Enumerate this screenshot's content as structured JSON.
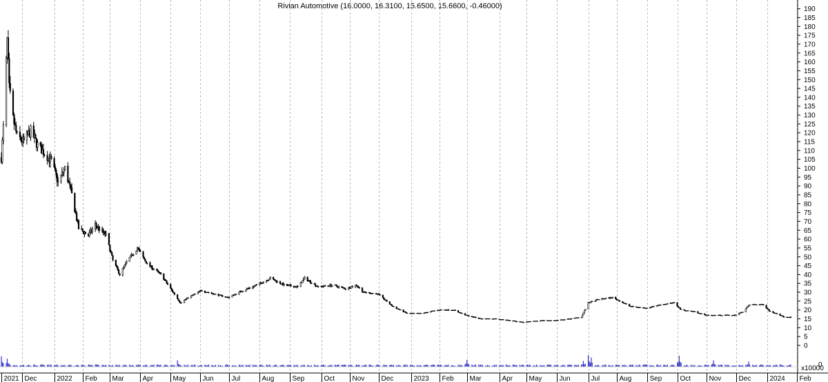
{
  "chart_data": {
    "type": "candlestick",
    "title": "Rivian Automotive (16.0000, 16.3100, 15.6500, 15.6600, -0.46000)",
    "last_bar": {
      "open": 16.0,
      "high": 16.31,
      "low": 15.65,
      "close": 15.66,
      "change": -0.46
    },
    "price_axis": {
      "min": 0,
      "max": 190,
      "step": 5,
      "ticks": [
        0,
        5,
        10,
        15,
        20,
        25,
        30,
        35,
        40,
        45,
        50,
        55,
        60,
        65,
        70,
        75,
        80,
        85,
        90,
        95,
        100,
        105,
        110,
        115,
        120,
        125,
        130,
        135,
        140,
        145,
        150,
        155,
        160,
        165,
        170,
        175,
        180,
        185,
        190
      ]
    },
    "volume_axis": {
      "label": "x10000",
      "tick": "0"
    },
    "x_axis": {
      "months": [
        "2021",
        "Dec",
        "2022",
        "Feb",
        "Mar",
        "Apr",
        "May",
        "Jun",
        "Jul",
        "Aug",
        "Sep",
        "Oct",
        "Nov",
        "Dec",
        "2023",
        "Feb",
        "Mar",
        "Apr",
        "May",
        "Jun",
        "Jul",
        "Aug",
        "Sep",
        "Oct",
        "Nov",
        "Dec",
        "2024",
        "Feb"
      ],
      "dates": [
        "2021-11-10",
        "2021-12-01",
        "2022-01-03",
        "2022-02-01",
        "2022-03-01",
        "2022-04-01",
        "2022-05-02",
        "2022-06-01",
        "2022-07-01",
        "2022-08-01",
        "2022-09-01",
        "2022-10-03",
        "2022-11-01",
        "2022-12-01",
        "2023-01-03",
        "2023-02-01",
        "2023-03-01",
        "2023-04-03",
        "2023-05-01",
        "2023-06-01",
        "2023-07-03",
        "2023-08-01",
        "2023-09-01",
        "2023-10-02",
        "2023-11-01",
        "2023-12-01",
        "2024-01-02",
        "2024-02-01"
      ],
      "start": "2021-11-10",
      "end": "2024-01-26"
    },
    "price_keypoints": [
      [
        "2021-11-10",
        106
      ],
      [
        "2021-11-12",
        123
      ],
      [
        "2021-11-16",
        172
      ],
      [
        "2021-11-18",
        145
      ],
      [
        "2021-11-22",
        128
      ],
      [
        "2021-11-26",
        118
      ],
      [
        "2021-12-03",
        115
      ],
      [
        "2021-12-10",
        121
      ],
      [
        "2021-12-17",
        113
      ],
      [
        "2021-12-31",
        104
      ],
      [
        "2022-01-07",
        92
      ],
      [
        "2022-01-14",
        100
      ],
      [
        "2022-01-21",
        85
      ],
      [
        "2022-01-28",
        66
      ],
      [
        "2022-02-07",
        62
      ],
      [
        "2022-02-14",
        68
      ],
      [
        "2022-02-25",
        62
      ],
      [
        "2022-03-04",
        48
      ],
      [
        "2022-03-11",
        40
      ],
      [
        "2022-03-18",
        47
      ],
      [
        "2022-03-29",
        55
      ],
      [
        "2022-04-08",
        46
      ],
      [
        "2022-04-22",
        40
      ],
      [
        "2022-05-02",
        32
      ],
      [
        "2022-05-12",
        24
      ],
      [
        "2022-05-20",
        27
      ],
      [
        "2022-06-03",
        31
      ],
      [
        "2022-06-15",
        29
      ],
      [
        "2022-06-30",
        27
      ],
      [
        "2022-07-15",
        31
      ],
      [
        "2022-07-29",
        34
      ],
      [
        "2022-08-12",
        38
      ],
      [
        "2022-08-26",
        34
      ],
      [
        "2022-09-09",
        33
      ],
      [
        "2022-09-16",
        38
      ],
      [
        "2022-09-30",
        33
      ],
      [
        "2022-10-14",
        34
      ],
      [
        "2022-10-28",
        32
      ],
      [
        "2022-11-08",
        34
      ],
      [
        "2022-11-15",
        30
      ],
      [
        "2022-11-30",
        29
      ],
      [
        "2022-12-15",
        22
      ],
      [
        "2022-12-30",
        18
      ],
      [
        "2023-01-13",
        18
      ],
      [
        "2023-01-31",
        20
      ],
      [
        "2023-02-15",
        20
      ],
      [
        "2023-02-28",
        17
      ],
      [
        "2023-03-15",
        15
      ],
      [
        "2023-03-31",
        15
      ],
      [
        "2023-04-14",
        14
      ],
      [
        "2023-04-28",
        13
      ],
      [
        "2023-05-15",
        14
      ],
      [
        "2023-05-31",
        14
      ],
      [
        "2023-06-15",
        15
      ],
      [
        "2023-06-26",
        16
      ],
      [
        "2023-07-03",
        24
      ],
      [
        "2023-07-14",
        26
      ],
      [
        "2023-07-28",
        27
      ],
      [
        "2023-08-15",
        22
      ],
      [
        "2023-08-31",
        21
      ],
      [
        "2023-09-15",
        23
      ],
      [
        "2023-09-29",
        24
      ],
      [
        "2023-10-06",
        20
      ],
      [
        "2023-10-20",
        19
      ],
      [
        "2023-10-31",
        17
      ],
      [
        "2023-11-15",
        17
      ],
      [
        "2023-11-30",
        17
      ],
      [
        "2023-12-08",
        19
      ],
      [
        "2023-12-15",
        23
      ],
      [
        "2023-12-29",
        23
      ],
      [
        "2024-01-05",
        19
      ],
      [
        "2024-01-12",
        18
      ],
      [
        "2024-01-19",
        16
      ],
      [
        "2024-01-26",
        15.66
      ]
    ],
    "volume_spikes": [
      [
        "2021-11-10",
        0.9
      ],
      [
        "2021-11-16",
        0.7
      ],
      [
        "2022-05-09",
        0.55
      ],
      [
        "2023-03-01",
        0.6
      ],
      [
        "2023-06-28",
        0.5
      ],
      [
        "2023-07-03",
        1.0
      ],
      [
        "2023-07-06",
        0.8
      ],
      [
        "2023-10-04",
        0.95
      ],
      [
        "2023-11-08",
        0.55
      ],
      [
        "2023-12-14",
        0.45
      ]
    ],
    "colors": {
      "candle": "#000000",
      "volume": "#3333cc",
      "grid": "#b8b8b8",
      "background": "#ffffff"
    },
    "grid": {
      "vertical": true,
      "horizontal": false
    },
    "price_axis_position": "right"
  }
}
